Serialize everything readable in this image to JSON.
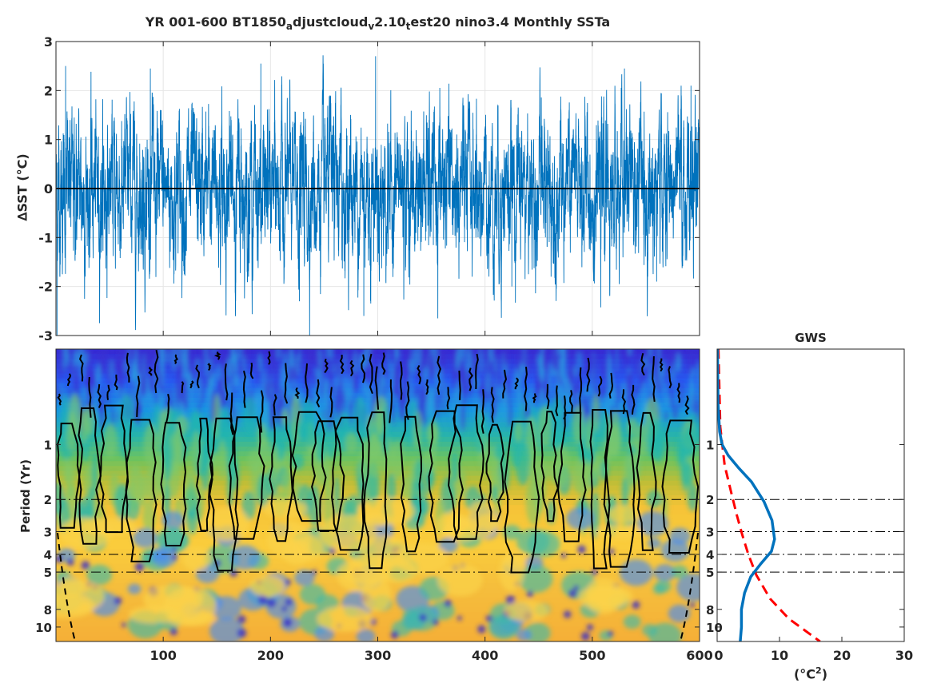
{
  "title": {
    "p1": "YR 001-600 BT1850",
    "s1": "a",
    "p2": "djustcloud",
    "s2": "v",
    "p3": "2.10",
    "s3": "t",
    "p4": "est20 nino3.4 Monthly SSTa"
  },
  "labels": {
    "sst_ylabel": "∆SST (°C)",
    "period_ylabel": "Period (Yr)",
    "gws_title": "GWS",
    "gws_xlabel_base": "(°C",
    "gws_xlabel_sup": "2",
    "gws_xlabel_end": ")"
  },
  "colors": {
    "series": "#0072BD",
    "zero_line": "#000000",
    "gws_line": "#0072BD",
    "significance": "#FF0000",
    "grid": "#E6E6E6"
  },
  "chart_data": [
    {
      "type": "line",
      "panel": "timeseries",
      "xlim": [
        0,
        600
      ],
      "ylim": [
        -3,
        3
      ],
      "yticks": [
        -3,
        -2,
        -1,
        0,
        1,
        2,
        3
      ],
      "xticks": [
        100,
        200,
        300,
        400,
        500,
        600
      ],
      "grid": true,
      "n_samples": 7200,
      "std": 0.8,
      "peaks": [
        {
          "x": 9,
          "y": 2.5
        },
        {
          "x": 88,
          "y": 2.45
        },
        {
          "x": 191,
          "y": 2.55
        },
        {
          "x": 298,
          "y": 2.7
        },
        {
          "x": 530,
          "y": 2.45
        },
        {
          "x": 592,
          "y": 2.1
        },
        {
          "x": 1,
          "y": -3.0
        },
        {
          "x": 287,
          "y": -2.6
        },
        {
          "x": 356,
          "y": -2.65
        },
        {
          "x": 227,
          "y": -2.3
        },
        {
          "x": 425,
          "y": -2.0
        },
        {
          "x": 560,
          "y": -1.9
        }
      ]
    },
    {
      "type": "heatmap",
      "panel": "wavelet_power",
      "xlim": [
        0,
        600
      ],
      "ylabel": "Period (Yr)",
      "yscale": "log",
      "ylim": [
        0.3,
        12
      ],
      "yticks": [
        1,
        2,
        3,
        4,
        5,
        8,
        10
      ],
      "xticks": [
        100,
        200,
        300,
        400,
        500,
        600
      ],
      "reference_periods": [
        2,
        3,
        4,
        5
      ]
    },
    {
      "type": "line",
      "panel": "global_wavelet_spectrum",
      "title": "GWS",
      "xlim": [
        0,
        30
      ],
      "xticks": [
        0,
        10,
        20,
        30
      ],
      "yscale": "log",
      "ylim": [
        0.3,
        12
      ],
      "yticks": [
        1,
        2,
        3,
        4,
        5,
        8,
        10
      ],
      "reference_periods": [
        2,
        3,
        4,
        5
      ],
      "series": [
        {
          "style": "solid",
          "points": [
            [
              0.05,
              0.3
            ],
            [
              0.15,
              0.6
            ],
            [
              0.4,
              0.85
            ],
            [
              0.8,
              1.0
            ],
            [
              1.8,
              1.15
            ],
            [
              3.5,
              1.35
            ],
            [
              5.5,
              1.6
            ],
            [
              7.5,
              2.05
            ],
            [
              8.8,
              2.6
            ],
            [
              9.2,
              3.3
            ],
            [
              8.7,
              3.85
            ],
            [
              7.0,
              4.5
            ],
            [
              5.4,
              5.3
            ],
            [
              4.4,
              6.5
            ],
            [
              3.9,
              8.0
            ],
            [
              3.9,
              10.0
            ],
            [
              3.7,
              12.0
            ]
          ]
        },
        {
          "style": "dashed",
          "points": [
            [
              0.2,
              0.3
            ],
            [
              0.5,
              0.8
            ],
            [
              1.2,
              1.3
            ],
            [
              2.2,
              1.8
            ],
            [
              3.1,
              2.4
            ],
            [
              4.0,
              3.1
            ],
            [
              5.0,
              4.0
            ],
            [
              6.3,
              5.2
            ],
            [
              8.5,
              7.0
            ],
            [
              11.5,
              9.0
            ],
            [
              16.5,
              12.0
            ]
          ]
        }
      ]
    }
  ]
}
